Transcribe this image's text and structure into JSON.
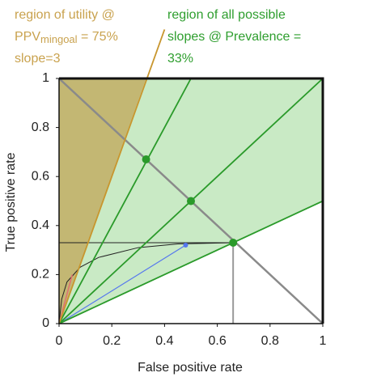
{
  "chart_data": {
    "type": "line",
    "xlabel": "False positive rate",
    "ylabel": "True positive rate",
    "xlim": [
      0,
      1
    ],
    "ylim": [
      0,
      1
    ],
    "xticks": [
      0,
      0.2,
      0.4,
      0.6,
      0.8,
      1
    ],
    "yticks": [
      0,
      0.2,
      0.4,
      0.6,
      0.8,
      1
    ],
    "utility_label": {
      "line1": "region of utility @",
      "ppv": "PPV",
      "sub": "mingoal",
      "rest": " = 75%",
      "line3": "slope=3",
      "color": "#c9a24e"
    },
    "slopes_label": {
      "line1": "region of all possible",
      "line2": "slopes @ Prevalence =",
      "line3": "33%",
      "color": "#2e9e2e"
    },
    "regions": [
      {
        "color": "#c3e8bf",
        "x": [
          0,
          0,
          1,
          1
        ],
        "y": [
          0,
          1,
          1,
          0.5
        ]
      },
      {
        "color": "#c2b169",
        "x": [
          0,
          0,
          0.33
        ],
        "y": [
          0,
          1,
          1
        ]
      }
    ],
    "lines": [
      {
        "color": "#222222",
        "width": 1,
        "x": [
          0,
          0,
          0.66
        ],
        "y": [
          0,
          0.33,
          0.33
        ]
      },
      {
        "color": "#222222",
        "width": 1,
        "x": [
          0,
          0.01,
          0.03,
          0.08,
          0.15,
          0.3,
          0.45,
          0.66
        ],
        "y": [
          0,
          0.1,
          0.17,
          0.23,
          0.27,
          0.31,
          0.325,
          0.33
        ]
      },
      {
        "color": "#5577ee",
        "width": 1.2,
        "x": [
          0,
          0.48
        ],
        "y": [
          0,
          0.32
        ]
      },
      {
        "color": "#e07070",
        "width": 1.5,
        "x": [
          0,
          0.03,
          0.05
        ],
        "y": [
          0,
          0.12,
          0.2
        ]
      },
      {
        "color": "#999999",
        "width": 2,
        "x": [
          0.66,
          0.66
        ],
        "y": [
          0.33,
          0
        ]
      },
      {
        "color": "#8a8a8a",
        "width": 2.5,
        "x": [
          0,
          1
        ],
        "y": [
          1,
          0
        ]
      },
      {
        "color": "#2a9a2a",
        "width": 1.8,
        "x": [
          0,
          0.5
        ],
        "y": [
          0,
          1
        ]
      },
      {
        "color": "#2a9a2a",
        "width": 1.8,
        "x": [
          0,
          1
        ],
        "y": [
          0,
          1
        ]
      },
      {
        "color": "#2a9a2a",
        "width": 1.8,
        "x": [
          0,
          1
        ],
        "y": [
          0,
          0.5
        ]
      },
      {
        "color": "#c8962e",
        "width": 1.8,
        "x": [
          0,
          0.4
        ],
        "y": [
          0,
          1.2
        ]
      },
      {
        "color": "#111111",
        "width": 3,
        "x": [
          0,
          1,
          1
        ],
        "y": [
          1,
          1,
          0
        ]
      },
      {
        "color": "#111111",
        "width": 1.5,
        "x": [
          0,
          0,
          1
        ],
        "y": [
          1,
          0,
          0
        ]
      }
    ],
    "points": {
      "color": "#2a9a2a",
      "x": [
        0.33,
        0.5,
        0.66
      ],
      "y": [
        0.67,
        0.5,
        0.33
      ]
    },
    "blue_point": {
      "color": "#5577ee",
      "x": [
        0.48
      ],
      "y": [
        0.32
      ]
    }
  }
}
